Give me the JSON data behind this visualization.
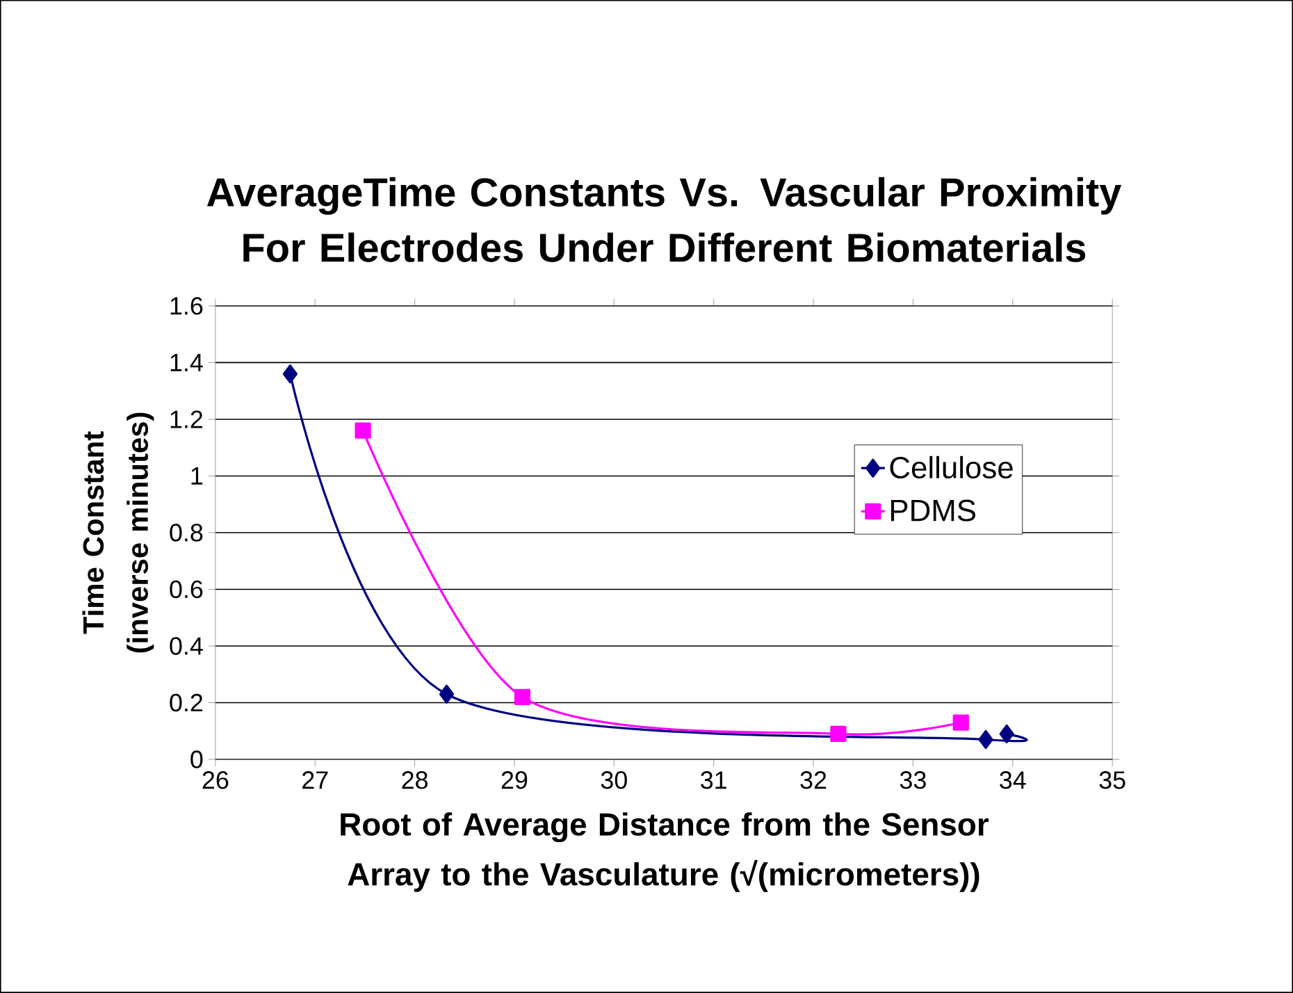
{
  "chart_data": {
    "type": "line",
    "title": "AverageTime Constants Vs. Vascular Proximity For Electrodes Under Different Biomaterials",
    "xlabel": "Root of Average Distance from the Sensor Array to the Vasculature (√(micrometers))",
    "ylabel": "Time Constant (inverse minutes)",
    "series": [
      {
        "name": "Cellulose",
        "color": "#000080",
        "marker": "diamond",
        "x": [
          26.75,
          28.32,
          33.73,
          33.94
        ],
        "values": [
          1.36,
          0.23,
          0.07,
          0.09
        ]
      },
      {
        "name": "PDMS",
        "color": "#ff00ff",
        "marker": "square",
        "x": [
          27.48,
          29.08,
          32.25,
          33.48
        ],
        "values": [
          1.16,
          0.22,
          0.09,
          0.13
        ]
      }
    ],
    "xlim": [
      26,
      35
    ],
    "xticks": [
      26,
      27,
      28,
      29,
      30,
      31,
      32,
      33,
      34,
      35
    ],
    "ylim": [
      0,
      1.6
    ],
    "yticks": [
      0,
      0.2,
      0.4,
      0.6,
      0.8,
      1,
      1.2,
      1.4,
      1.6
    ],
    "grid": "y",
    "legend": "right",
    "line_style": "solid"
  }
}
